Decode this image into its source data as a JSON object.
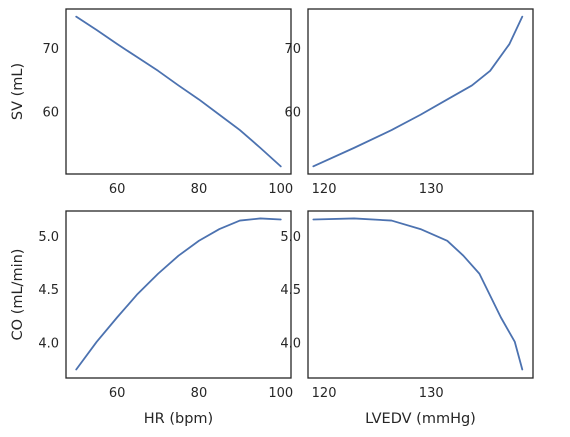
{
  "chart_data": [
    {
      "type": "line",
      "xlabel": "",
      "ylabel": "SV (mL)",
      "xlim": [
        47.5,
        102.5
      ],
      "ylim": [
        50.3,
        76.2
      ],
      "xticks": [
        60,
        80,
        100
      ],
      "yticks": [
        60,
        70
      ],
      "series": [
        {
          "x": [
            50,
            55,
            60,
            65,
            70,
            75,
            80,
            85,
            90,
            95,
            100
          ],
          "y": [
            75.0,
            72.9,
            70.7,
            68.6,
            66.5,
            64.2,
            62.0,
            59.6,
            57.2,
            54.4,
            51.5
          ]
        }
      ]
    },
    {
      "type": "line",
      "xlabel": "",
      "ylabel": "",
      "xlim": [
        118.5,
        139.5
      ],
      "ylim": [
        50.3,
        76.2
      ],
      "xticks": [
        120,
        130
      ],
      "yticks": [
        60,
        70
      ],
      "series": [
        {
          "x": [
            119.0,
            122.8,
            126.3,
            129.0,
            131.5,
            133.8,
            135.5,
            137.3,
            138.5
          ],
          "y": [
            51.5,
            54.4,
            57.2,
            59.6,
            62.0,
            64.2,
            66.5,
            70.7,
            75.0
          ]
        }
      ]
    },
    {
      "type": "line",
      "xlabel": "HR (bpm)",
      "ylabel": "CO (mL/min)",
      "xlim": [
        47.5,
        102.5
      ],
      "ylim": [
        3.67,
        5.24
      ],
      "xticks": [
        60,
        80,
        100
      ],
      "yticks": [
        4.0,
        4.5,
        5.0
      ],
      "series": [
        {
          "x": [
            50,
            55,
            60,
            65,
            70,
            75,
            80,
            85,
            90,
            95,
            100
          ],
          "y": [
            3.75,
            4.01,
            4.24,
            4.46,
            4.65,
            4.82,
            4.96,
            5.07,
            5.15,
            5.17,
            5.16
          ]
        }
      ]
    },
    {
      "type": "line",
      "xlabel": "LVEDV (mmHg)",
      "ylabel": "",
      "xlim": [
        118.5,
        139.5
      ],
      "ylim": [
        3.67,
        5.24
      ],
      "xticks": [
        120,
        130
      ],
      "yticks": [
        4.0,
        4.5,
        5.0
      ],
      "series": [
        {
          "x": [
            119.0,
            122.8,
            126.3,
            129.0,
            131.5,
            133.0,
            134.5,
            136.5,
            137.8,
            138.5
          ],
          "y": [
            5.16,
            5.17,
            5.15,
            5.07,
            4.96,
            4.82,
            4.65,
            4.24,
            4.01,
            3.75
          ]
        }
      ]
    }
  ]
}
